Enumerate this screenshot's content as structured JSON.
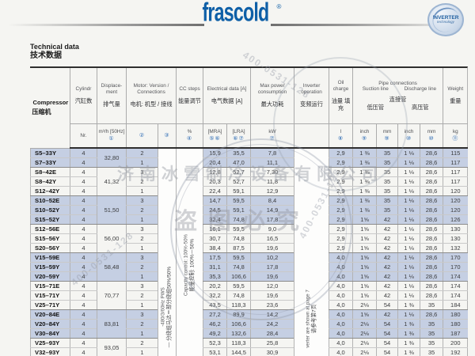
{
  "brand": {
    "logo": "frascold",
    "reg_mark": "®",
    "badge": {
      "line1": "INVERTER",
      "line2": "technology"
    }
  },
  "title": {
    "en": "Technical data",
    "zh": "技术数据"
  },
  "header": {
    "compressor": {
      "en": "Compressor",
      "zh": "压缩机"
    },
    "cylinders": {
      "en": "Cylindr",
      "zh": "汽缸数",
      "unit": "Nr."
    },
    "displacement": {
      "en": "Displace- ment",
      "zh": "排气量",
      "unit": "m³/h [50Hz]",
      "note": "①"
    },
    "motor": {
      "en": "Motor: Version / Connections",
      "zh": "电机: 机型 / 接线",
      "note_version": "②",
      "note_connections": "③"
    },
    "cc_steps": {
      "en": "CC steps",
      "zh": "能量调节",
      "unit": "%",
      "note": "④"
    },
    "electrical": {
      "en": "Electrical data [A]",
      "zh": "电气数据 [A]",
      "unit_mra": "[MRA]",
      "note_mra": "⑤⑥",
      "unit_lra": "[LRA]",
      "note_lra": "⑥⑦"
    },
    "max_power": {
      "en": "Max power consumption",
      "zh": "最大功耗",
      "unit": "kW",
      "note": "⑦"
    },
    "inverter": {
      "en": "Inverter operation",
      "zh": "变频运行"
    },
    "oil": {
      "en": "Oil charge",
      "zh": "油量 填充",
      "unit": "l",
      "note": "⑧"
    },
    "pipe": {
      "en": "Pipe connections",
      "zh": "连接管",
      "suction_en": "Suction line",
      "discharge_en": "Discharge line",
      "suction_zh": "低压管",
      "discharge_zh": "高压管",
      "units": [
        "inch",
        "mm",
        "inch",
        "mm"
      ],
      "notes": [
        "⑨",
        "⑨",
        "⑩",
        "⑩"
      ]
    },
    "weight": {
      "en": "Weight",
      "zh": "重量",
      "unit": "kg",
      "note": "⑪"
    }
  },
  "annotations": {
    "connections": {
      "en": "-480/3/60Hz   PWS",
      "zh": "— 分绕组马达＝部分绕组50%/50%"
    },
    "capacity": {
      "en": "Capacity control: 100%-50%",
      "zh": "能量控制: 100%－50%"
    },
    "inverter": {
      "en": "verter are shown at page 7",
      "zh": "请参考第7页"
    }
  },
  "table": {
    "groups": [
      {
        "displacement": "32,80",
        "shaded": true,
        "rows": [
          {
            "model": "S5–33Y",
            "cylinders": "4",
            "version": "2",
            "mra": "15,9",
            "lra": "35,5",
            "kw": "7,8",
            "oil": "2,9",
            "suction_inch": "1 ⅜",
            "suction_mm": "35",
            "discharge_inch": "1 ⅛",
            "discharge_mm": "28,6",
            "weight": "115"
          },
          {
            "model": "S7–33Y",
            "cylinders": "4",
            "version": "1",
            "mra": "20,4",
            "lra": "47,0",
            "kw": "11,1",
            "oil": "2,9",
            "suction_inch": "1 ⅜",
            "suction_mm": "35",
            "discharge_inch": "1 ⅛",
            "discharge_mm": "28,6",
            "weight": "117"
          }
        ]
      },
      {
        "displacement": "41,32",
        "shaded": false,
        "rows": [
          {
            "model": "S8–42E",
            "cylinders": "4",
            "version": "3",
            "mra": "12,8",
            "lra": "52,7",
            "kw": "7,30",
            "oil": "2,9",
            "suction_inch": "1 ⅜",
            "suction_mm": "35",
            "discharge_inch": "1 ⅛",
            "discharge_mm": "28,6",
            "weight": "117"
          },
          {
            "model": "S8–42Y",
            "cylinders": "4",
            "version": "2",
            "mra": "20,3",
            "lra": "52,7",
            "kw": "11,8",
            "oil": "2,9",
            "suction_inch": "1 ⅜",
            "suction_mm": "35",
            "discharge_inch": "1 ⅛",
            "discharge_mm": "28,6",
            "weight": "117"
          },
          {
            "model": "S12–42Y",
            "cylinders": "4",
            "version": "1",
            "mra": "22,4",
            "lra": "59,1",
            "kw": "12,9",
            "oil": "2,9",
            "suction_inch": "1 ⅜",
            "suction_mm": "35",
            "discharge_inch": "1 ⅛",
            "discharge_mm": "28,6",
            "weight": "120"
          }
        ]
      },
      {
        "displacement": "51,50",
        "shaded": true,
        "rows": [
          {
            "model": "S10–52E",
            "cylinders": "4",
            "version": "3",
            "mra": "14,7",
            "lra": "59,5",
            "kw": "8,4",
            "oil": "2,9",
            "suction_inch": "1 ⅜",
            "suction_mm": "35",
            "discharge_inch": "1 ⅛",
            "discharge_mm": "28,6",
            "weight": "120"
          },
          {
            "model": "S10–52Y",
            "cylinders": "4",
            "version": "2",
            "mra": "24,5",
            "lra": "59,1",
            "kw": "14,9",
            "oil": "2,9",
            "suction_inch": "1 ⅜",
            "suction_mm": "35",
            "discharge_inch": "1 ⅛",
            "discharge_mm": "28,6",
            "weight": "120"
          },
          {
            "model": "S15–52Y",
            "cylinders": "4",
            "version": "1",
            "mra": "32,4",
            "lra": "74,8",
            "kw": "17,8",
            "oil": "2,9",
            "suction_inch": "1⅝",
            "suction_mm": "42",
            "discharge_inch": "1 ⅛",
            "discharge_mm": "28,6",
            "weight": "126"
          }
        ]
      },
      {
        "displacement": "56,00",
        "shaded": false,
        "rows": [
          {
            "model": "S12–56E",
            "cylinders": "4",
            "version": "3",
            "mra": "16,1",
            "lra": "59,5",
            "kw": "9,0",
            "oil": "2,9",
            "suction_inch": "1⅝",
            "suction_mm": "42",
            "discharge_inch": "1 ⅛",
            "discharge_mm": "28,6",
            "weight": "130"
          },
          {
            "model": "S15–56Y",
            "cylinders": "4",
            "version": "2",
            "mra": "30,7",
            "lra": "74,8",
            "kw": "16,5",
            "oil": "2,9",
            "suction_inch": "1⅝",
            "suction_mm": "42",
            "discharge_inch": "1 ⅛",
            "discharge_mm": "28,6",
            "weight": "130"
          },
          {
            "model": "S20–56Y",
            "cylinders": "4",
            "version": "1",
            "mra": "38,4",
            "lra": "87,5",
            "kw": "19,6",
            "oil": "2,9",
            "suction_inch": "1⅝",
            "suction_mm": "42",
            "discharge_inch": "1 ⅛",
            "discharge_mm": "28,6",
            "weight": "132"
          }
        ]
      },
      {
        "displacement": "58,48",
        "shaded": true,
        "rows": [
          {
            "model": "V15–59E",
            "cylinders": "4",
            "version": "3",
            "mra": "17,5",
            "lra": "59,5",
            "kw": "10,2",
            "oil": "4,0",
            "suction_inch": "1⅝",
            "suction_mm": "42",
            "discharge_inch": "1 ⅛",
            "discharge_mm": "28,6",
            "weight": "170"
          },
          {
            "model": "V15–59Y",
            "cylinders": "4",
            "version": "2",
            "mra": "31,1",
            "lra": "74,8",
            "kw": "17,8",
            "oil": "4,0",
            "suction_inch": "1⅝",
            "suction_mm": "42",
            "discharge_inch": "1 ⅛",
            "discharge_mm": "28,6",
            "weight": "170"
          },
          {
            "model": "V20–59Y",
            "cylinders": "4",
            "version": "1",
            "mra": "35,3",
            "lra": "106,6",
            "kw": "19,6",
            "oil": "4,0",
            "suction_inch": "1⅝",
            "suction_mm": "42",
            "discharge_inch": "1 ⅛",
            "discharge_mm": "28,6",
            "weight": "174"
          }
        ]
      },
      {
        "displacement": "70,77",
        "shaded": false,
        "rows": [
          {
            "model": "V15–71E",
            "cylinders": "4",
            "version": "3",
            "mra": "20,2",
            "lra": "59,5",
            "kw": "12,0",
            "oil": "4,0",
            "suction_inch": "1⅝",
            "suction_mm": "42",
            "discharge_inch": "1 ⅛",
            "discharge_mm": "28,6",
            "weight": "174"
          },
          {
            "model": "V15–71Y",
            "cylinders": "4",
            "version": "2",
            "mra": "32,2",
            "lra": "74,8",
            "kw": "19,6",
            "oil": "4,0",
            "suction_inch": "1⅝",
            "suction_mm": "42",
            "discharge_inch": "1 ⅛",
            "discharge_mm": "28,6",
            "weight": "174"
          },
          {
            "model": "V25–71Y",
            "cylinders": "4",
            "version": "1",
            "mra": "43,5",
            "lra": "118,3",
            "kw": "23,6",
            "oil": "4,0",
            "suction_inch": "2⅛",
            "suction_mm": "54",
            "discharge_inch": "1 ⅜",
            "discharge_mm": "35",
            "weight": "184"
          }
        ]
      },
      {
        "displacement": "83,81",
        "shaded": true,
        "rows": [
          {
            "model": "V20–84E",
            "cylinders": "4",
            "version": "3",
            "mra": "27,2",
            "lra": "89,9",
            "kw": "14,2",
            "oil": "4,0",
            "suction_inch": "1⅝",
            "suction_mm": "42",
            "discharge_inch": "1 ⅛",
            "discharge_mm": "28,6",
            "weight": "180"
          },
          {
            "model": "V20–84Y",
            "cylinders": "4",
            "version": "2",
            "mra": "46,2",
            "lra": "106,6",
            "kw": "24,2",
            "oil": "4,0",
            "suction_inch": "2⅛",
            "suction_mm": "54",
            "discharge_inch": "1 ⅜",
            "discharge_mm": "35",
            "weight": "180"
          },
          {
            "model": "V30–84Y",
            "cylinders": "4",
            "version": "1",
            "mra": "49,2",
            "lra": "132,6",
            "kw": "28,4",
            "oil": "4,0",
            "suction_inch": "2⅛",
            "suction_mm": "54",
            "discharge_inch": "1 ⅜",
            "discharge_mm": "35",
            "weight": "187"
          }
        ]
      },
      {
        "displacement": "93,05",
        "shaded": false,
        "rows": [
          {
            "model": "V25–93Y",
            "cylinders": "4",
            "version": "2",
            "mra": "52,3",
            "lra": "118,3",
            "kw": "25,8",
            "oil": "4,0",
            "suction_inch": "2⅛",
            "suction_mm": "54",
            "discharge_inch": "1 ⅜",
            "discharge_mm": "35",
            "weight": "200"
          },
          {
            "model": "V32–93Y",
            "cylinders": "4",
            "version": "1",
            "mra": "53,1",
            "lra": "144,5",
            "kw": "30,9",
            "oil": "4,0",
            "suction_inch": "2⅛",
            "suction_mm": "54",
            "discharge_inch": "1 ⅜",
            "discharge_mm": "35",
            "weight": "192"
          }
        ]
      }
    ]
  },
  "watermark": {
    "company": "济南冰雪制冷设备有限公司",
    "notice": "盗图必究",
    "phone": "400-0531-128"
  }
}
